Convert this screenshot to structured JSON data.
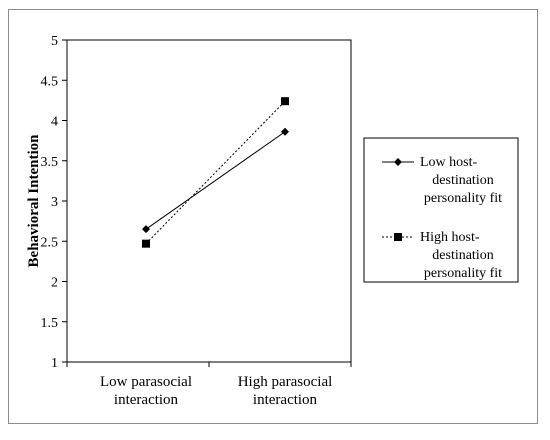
{
  "chart_data": {
    "type": "line",
    "title": "",
    "xlabel": "",
    "ylabel": "Behavioral Intention",
    "ylim": [
      1,
      5
    ],
    "yticks": [
      "1",
      "1.5",
      "2",
      "2.5",
      "3",
      "3.5",
      "4",
      "4.5",
      "5"
    ],
    "categories": [
      [
        "Low parasocial",
        "interaction"
      ],
      [
        "High parasocial",
        "interaction"
      ]
    ],
    "grid": false,
    "legend_position": "right",
    "series": [
      {
        "name_lines": [
          "Low host-",
          "destination",
          "personality fit"
        ],
        "values": [
          2.65,
          3.86
        ],
        "marker": "diamond",
        "line": "solid"
      },
      {
        "name_lines": [
          "High host-",
          "destination",
          "personality fit"
        ],
        "values": [
          2.47,
          4.24
        ],
        "marker": "square",
        "line": "dotted"
      }
    ]
  },
  "colors": {
    "line": "#000000",
    "axis": "#000000",
    "frame": "#8c8c8c"
  }
}
